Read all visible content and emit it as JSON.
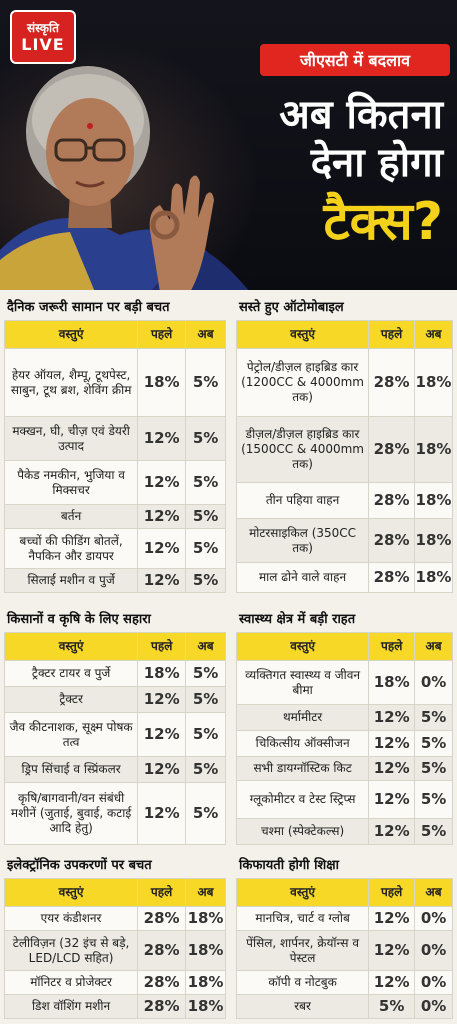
{
  "header": {
    "logo_line1": "संस्कृति",
    "logo_line2": "LIVE",
    "badge": "जीएसटी में बदलाव",
    "headline_line1": "अब कितना",
    "headline_line2": "देना होगा",
    "headline_line3": "टैक्स?"
  },
  "colors": {
    "accent_red": "#e0261f",
    "header_yellow": "#f7d827",
    "headline_yellow": "#f4d21a"
  },
  "col_headers": {
    "item": "वस्तुएं",
    "before": "पहले",
    "now": "अब"
  },
  "sections": [
    {
      "title": "दैनिक जरूरी सामान पर बड़ी बचत",
      "rows": [
        {
          "item": "हेयर ऑयल, शैम्पू, टूथपेस्ट, साबुन, टूथ ब्रश, शेविंग क्रीम",
          "before": "18%",
          "now": "5%"
        },
        {
          "item": "मक्खन, घी, चीज़ एवं डेयरी उत्पाद",
          "before": "12%",
          "now": "5%"
        },
        {
          "item": "पैकेड नमकीन, भुजिया व मिक्सचर",
          "before": "12%",
          "now": "5%"
        },
        {
          "item": "बर्तन",
          "before": "12%",
          "now": "5%"
        },
        {
          "item": "बच्चों की फीडिंग बोतलें, नैपकिन और डायपर",
          "before": "12%",
          "now": "5%"
        },
        {
          "item": "सिलाई मशीन व पुर्जे",
          "before": "12%",
          "now": "5%"
        }
      ]
    },
    {
      "title": "सस्ते हुए ऑटोमोबाइल",
      "rows": [
        {
          "item": "पेट्रोल/डीज़ल हाइब्रिड कार (1200CC & 4000mm तक)",
          "before": "28%",
          "now": "18%"
        },
        {
          "item": "डीज़ल/डीज़ल हाइब्रिड कार (1500CC & 4000mm तक)",
          "before": "28%",
          "now": "18%"
        },
        {
          "item": "तीन पहिया वाहन",
          "before": "28%",
          "now": "18%"
        },
        {
          "item": "मोटरसाइकिल (350CC तक)",
          "before": "28%",
          "now": "18%"
        },
        {
          "item": "माल ढोने वाले वाहन",
          "before": "28%",
          "now": "18%"
        }
      ]
    },
    {
      "title": "किसानों व कृषि के लिए सहारा",
      "rows": [
        {
          "item": "ट्रैक्टर टायर व पुर्जे",
          "before": "18%",
          "now": "5%"
        },
        {
          "item": "ट्रैक्टर",
          "before": "12%",
          "now": "5%"
        },
        {
          "item": "जैव कीटनाशक, सूक्ष्म पोषक तत्व",
          "before": "12%",
          "now": "5%"
        },
        {
          "item": "ड्रिप सिंचाई व स्प्रिंकलर",
          "before": "12%",
          "now": "5%"
        },
        {
          "item": "कृषि/बागवानी/वन संबंधी मशीनें (जुताई, बुवाई, कटाई आदि हेतु)",
          "before": "12%",
          "now": "5%"
        }
      ]
    },
    {
      "title": "स्वास्थ्य क्षेत्र में बड़ी राहत",
      "rows": [
        {
          "item": "व्यक्तिगत स्वास्थ्य व जीवन बीमा",
          "before": "18%",
          "now": "0%"
        },
        {
          "item": "थर्मामीटर",
          "before": "12%",
          "now": "5%"
        },
        {
          "item": "चिकित्सीय ऑक्सीजन",
          "before": "12%",
          "now": "5%"
        },
        {
          "item": "सभी डायग्नॉस्टिक किट",
          "before": "12%",
          "now": "5%"
        },
        {
          "item": "ग्लूकोमीटर व टेस्ट स्ट्रिप्स",
          "before": "12%",
          "now": "5%"
        },
        {
          "item": "चश्मा (स्पेक्टेकल्स)",
          "before": "12%",
          "now": "5%"
        }
      ]
    },
    {
      "title": "इलेक्ट्रॉनिक उपकरणों पर बचत",
      "rows": [
        {
          "item": "एयर कंडीशनर",
          "before": "28%",
          "now": "18%"
        },
        {
          "item": "टेलीविज़न (32 इंच से बड़े, LED/LCD सहित)",
          "before": "28%",
          "now": "18%"
        },
        {
          "item": "मॉनिटर व प्रोजेक्टर",
          "before": "28%",
          "now": "18%"
        },
        {
          "item": "डिश वॉशिंग मशीन",
          "before": "28%",
          "now": "18%"
        }
      ]
    },
    {
      "title": "किफायती होगी शिक्षा",
      "rows": [
        {
          "item": "मानचित्र, चार्ट व ग्लोब",
          "before": "12%",
          "now": "0%"
        },
        {
          "item": "पेंसिल, शार्पनर, क्रेयॉन्स व पेस्टल",
          "before": "12%",
          "now": "0%"
        },
        {
          "item": "कॉपी व नोटबुक",
          "before": "12%",
          "now": "0%"
        },
        {
          "item": "रबर",
          "before": "5%",
          "now": "0%"
        }
      ]
    }
  ]
}
